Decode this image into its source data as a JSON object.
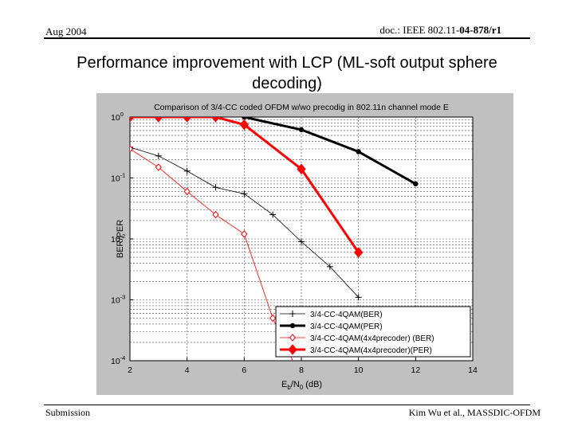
{
  "header": {
    "date": "Aug 2004",
    "doc_prefix": "doc.: IEEE 802.11-",
    "doc_code": "04-878/r1"
  },
  "slide_title_line1": "Performance improvement with LCP (ML-soft output sphere",
  "slide_title_line2": "decoding)",
  "footer": {
    "left": "Submission",
    "right": "Kim Wu et al., MASSDIC-OFDM"
  },
  "chart_data": {
    "type": "line",
    "title": "Comparison of 3/4-CC coded OFDM w/wo precodig in 802.11n channel mode E",
    "xlabel_main": "E",
    "xlabel_sub1": "b",
    "xlabel_mid": "/N",
    "xlabel_sub2": "0",
    "xlabel_unit": " (dB)",
    "ylabel": "BER/PER",
    "xlim": [
      2,
      14
    ],
    "ylim_log10": [
      -4,
      0
    ],
    "y_scale": "log",
    "x_ticks": [
      2,
      4,
      6,
      8,
      10,
      12,
      14
    ],
    "y_tick_base": "10",
    "y_tick_exponents": [
      "0",
      "-1",
      "-2",
      "-3",
      "-4"
    ],
    "grid": true,
    "legend_position": "bottom-right",
    "series": [
      {
        "name": "3/4-CC-4QAM(BER)",
        "color": "#000000",
        "marker": "plus",
        "width": 0.8,
        "x": [
          2,
          3,
          4,
          5,
          6,
          7,
          8,
          9,
          10
        ],
        "y": [
          0.32,
          0.23,
          0.13,
          0.07,
          0.055,
          0.025,
          0.009,
          0.0035,
          0.0011
        ]
      },
      {
        "name": "3/4-CC-4QAM(PER)",
        "color": "#000000",
        "marker": "dot",
        "width": 3,
        "x": [
          6,
          8,
          10,
          12
        ],
        "y": [
          1.0,
          0.62,
          0.27,
          0.08
        ]
      },
      {
        "name": "3/4-CC-4QAM(4x4precoder) (BER)",
        "color": "#ff0000",
        "marker": "diamond-open",
        "width": 0.8,
        "x": [
          2,
          3,
          4,
          5,
          6,
          7,
          8
        ],
        "y": [
          0.3,
          0.15,
          0.06,
          0.025,
          0.012,
          0.0005,
          5e-05
        ]
      },
      {
        "name": "3/4-CC-4QAM(4x4precoder)(PER)",
        "color": "#ff0000",
        "marker": "diamond-filled",
        "width": 3,
        "x": [
          2,
          3,
          4,
          5,
          6,
          8,
          10
        ],
        "y": [
          1.0,
          1.0,
          1.0,
          1.0,
          0.75,
          0.14,
          0.006
        ]
      }
    ]
  }
}
